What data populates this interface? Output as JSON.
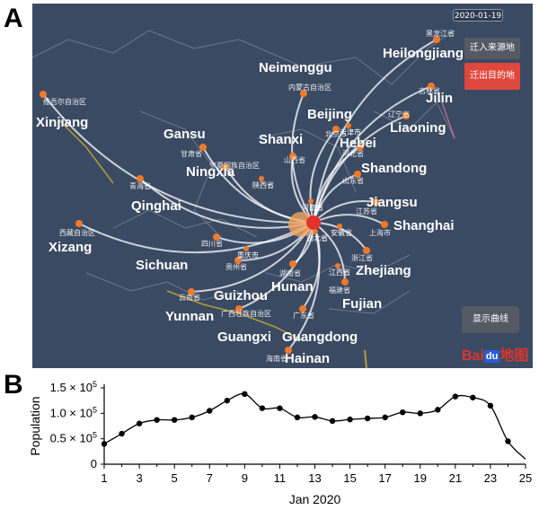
{
  "panels": {
    "a": "A",
    "b": "B"
  },
  "map": {
    "date": "2020-01-19",
    "buttons": {
      "source": "迁入来源地",
      "destination": "迁出目的地",
      "show_curve": "显示曲线"
    },
    "colors": {
      "background": "#3b4a63",
      "flow": "#ffffff",
      "origin": "#e5312b",
      "node": "#f07a2a",
      "active_button": "#e0473d"
    },
    "logo": {
      "part1": "Bai",
      "part2": "du",
      "part3": "地图"
    },
    "provinces": [
      {
        "name": "Xinjiang",
        "local": "维吾尔自治区"
      },
      {
        "name": "Gansu",
        "local": "甘肃省"
      },
      {
        "name": "Neimenggu",
        "local": "内蒙古自治区"
      },
      {
        "name": "Heilongjiang",
        "local": "黑龙江省"
      },
      {
        "name": "Jilin",
        "local": "吉林省"
      },
      {
        "name": "Liaoning",
        "local": "辽宁省"
      },
      {
        "name": "Beijing",
        "local": "北京市"
      },
      {
        "name": "Shanxi",
        "local": "山西省"
      },
      {
        "name": "Hebei",
        "local": "河北省"
      },
      {
        "name": "Ningxia",
        "local": "宁夏回族自治区"
      },
      {
        "name": "Shandong",
        "local": "山东省"
      },
      {
        "name": "Qinghai",
        "local": "青海省"
      },
      {
        "name": "Jiangsu",
        "local": "江苏省"
      },
      {
        "name": "Shanghai",
        "local": "上海市"
      },
      {
        "name": "Xizang",
        "local": "西藏自治区"
      },
      {
        "name": "Sichuan",
        "local": "四川省"
      },
      {
        "name": "Zhejiang",
        "local": "浙江省"
      },
      {
        "name": "Hunan",
        "local": "湖南省"
      },
      {
        "name": "Guizhou",
        "local": "贵州省"
      },
      {
        "name": "Fujian",
        "local": "福建省"
      },
      {
        "name": "Yunnan",
        "local": "云南省"
      },
      {
        "name": "Guangxi",
        "local": "广西壮族自治区"
      },
      {
        "name": "Guangdong",
        "local": "广东省"
      },
      {
        "name": "Hainan",
        "local": "海南省"
      }
    ],
    "minor_labels": [
      "陕西省",
      "河南省",
      "湖北省",
      "重庆市",
      "安徽省",
      "江西省",
      "天津市"
    ]
  },
  "chart_data": {
    "type": "line",
    "x": [
      1,
      2,
      3,
      4,
      5,
      6,
      7,
      8,
      9,
      10,
      11,
      12,
      13,
      14,
      15,
      16,
      17,
      18,
      19,
      20,
      21,
      22,
      23,
      24
    ],
    "values": [
      40000,
      60000,
      80000,
      87000,
      87000,
      92000,
      105000,
      125000,
      138000,
      110000,
      110000,
      92000,
      93000,
      85000,
      88000,
      90000,
      92000,
      102000,
      100000,
      107000,
      133000,
      131000,
      115000,
      45000
    ],
    "curve_end": [
      25,
      10000
    ],
    "xlabel": "Jan 2020",
    "ylabel": "Population",
    "xlim": [
      1,
      25
    ],
    "ylim": [
      0,
      150000
    ],
    "xticks": [
      "1",
      "3",
      "5",
      "7",
      "9",
      "11",
      "13",
      "15",
      "17",
      "19",
      "21",
      "23",
      "25"
    ],
    "yticks": [
      {
        "value": 0,
        "base": "0",
        "exp": ""
      },
      {
        "value": 50000,
        "base": "0.5 × 10",
        "exp": "5"
      },
      {
        "value": 100000,
        "base": "1.0 × 10",
        "exp": "5"
      },
      {
        "value": 150000,
        "base": "1.5 × 10",
        "exp": "5"
      }
    ]
  }
}
